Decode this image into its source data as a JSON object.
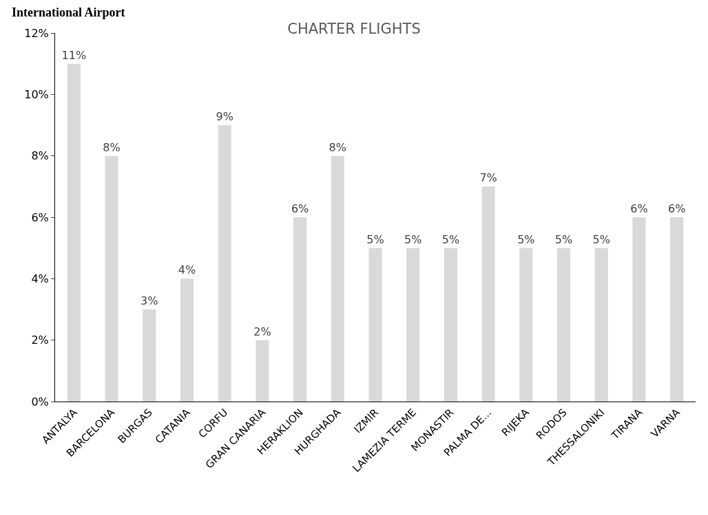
{
  "chart_data": {
    "type": "bar",
    "title": "CHARTER FLIGHTS",
    "annotations": [
      "International Airport"
    ],
    "categories": [
      "ANTALYA",
      "BARCELONA",
      "BURGAS",
      "CATANIA",
      "CORFU",
      "GRAN CANARIA",
      "HERAKLION",
      "HURGHADA",
      "IZMIR",
      "LAMEZIA TERME",
      "MONASTIR",
      "PALMA DE...",
      "RIJEKA",
      "RODOS",
      "THESSALONIKI",
      "TIRANA",
      "VARNA"
    ],
    "values": [
      11,
      8,
      3,
      4,
      9,
      2,
      6,
      8,
      5,
      5,
      5,
      7,
      5,
      5,
      5,
      6,
      6
    ],
    "value_labels": [
      "11%",
      "8%",
      "3%",
      "4%",
      "9%",
      "2%",
      "6%",
      "8%",
      "5%",
      "5%",
      "5%",
      "7%",
      "5%",
      "5%",
      "5%",
      "6%",
      "6%"
    ],
    "color": "#d9d9d9",
    "ylim": [
      0,
      12
    ],
    "yticks": [
      {
        "value": 0,
        "label": "0%"
      },
      {
        "value": 2,
        "label": "2%"
      },
      {
        "value": 4,
        "label": "4%"
      },
      {
        "value": 6,
        "label": "6%"
      },
      {
        "value": 8,
        "label": "8%"
      },
      {
        "value": 10,
        "label": "10%"
      },
      {
        "value": 12,
        "label": "12%"
      }
    ],
    "grid": false
  }
}
